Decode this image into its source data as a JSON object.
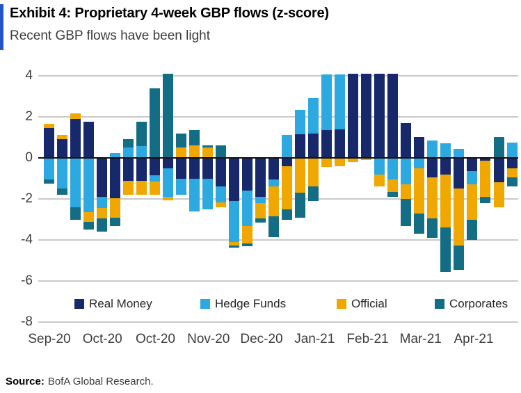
{
  "header": {
    "exhibit_title": "Exhibit 4: Proprietary 4-week GBP flows (z-score)",
    "subtitle": "Recent GBP flows have been light",
    "accent_color": "#2457C5"
  },
  "source": {
    "label": "Source:",
    "text": "BofA Global Research."
  },
  "chart_data": {
    "type": "bar",
    "stacked": true,
    "title": "Proprietary 4-week GBP flows (z-score)",
    "ylabel": "z-score",
    "ylim": [
      -8,
      4
    ],
    "yticks": [
      4,
      2,
      0,
      -2,
      -4,
      -6,
      -8
    ],
    "grid": true,
    "legend_position": "bottom-inside",
    "x_labels": [
      "Sep-20",
      "Oct-20",
      "Oct-20",
      "Nov-20",
      "Dec-20",
      "Jan-21",
      "Feb-21",
      "Mar-21",
      "Apr-21"
    ],
    "colors": {
      "real_money": "#17286B",
      "hedge_funds": "#2BA9E0",
      "official": "#F0A800",
      "corporates": "#136E85",
      "gridline": "#C9C9C9",
      "zero_axis": "#111111"
    },
    "series": [
      {
        "name": "Real Money",
        "color": "#17286B",
        "values": [
          1.45,
          0.9,
          1.9,
          1.75,
          -1.9,
          -1.95,
          -1.1,
          -1.1,
          -0.85,
          -0.5,
          -1.0,
          -1.0,
          -1.0,
          -1.4,
          -2.1,
          -1.6,
          -1.9,
          -1.05,
          -0.4,
          1.15,
          1.2,
          1.35,
          1.4,
          4.1,
          4.1,
          4.1,
          4.1,
          1.7,
          1.0,
          -0.95,
          -0.8,
          -1.5,
          -0.65,
          -0.15,
          -1.2,
          -0.5
        ]
      },
      {
        "name": "Hedge Funds",
        "color": "#2BA9E0",
        "values": [
          -1.05,
          -1.5,
          -2.4,
          -2.65,
          -0.55,
          0.25,
          0.5,
          0.57,
          -0.3,
          -1.4,
          -0.8,
          -1.6,
          -1.5,
          -0.75,
          -2.0,
          -1.7,
          -0.3,
          -0.35,
          1.1,
          1.2,
          1.7,
          2.7,
          2.65,
          0,
          0,
          -0.8,
          -1.05,
          -1.3,
          -0.5,
          0.85,
          0.7,
          0.45,
          -0.65,
          0,
          0,
          0.75
        ]
      },
      {
        "name": "Official",
        "color": "#F0A800",
        "values": [
          0.2,
          0.2,
          0.25,
          -0.45,
          -0.5,
          -0.95,
          -0.7,
          -0.7,
          -0.65,
          -0.15,
          0.5,
          0.6,
          0.5,
          -0.25,
          -0.15,
          -0.85,
          -0.75,
          -1.45,
          -2.1,
          -1.7,
          -1.4,
          -0.45,
          -0.4,
          -0.2,
          -0.1,
          -0.6,
          -0.6,
          -0.7,
          -2.2,
          -2.0,
          -2.6,
          -2.75,
          -1.7,
          -1.75,
          -1.2,
          -0.45
        ]
      },
      {
        "name": "Corporates",
        "color": "#136E85",
        "values": [
          -0.2,
          -0.3,
          -0.6,
          -0.4,
          -0.65,
          -0.4,
          0.4,
          1.2,
          3.4,
          4.1,
          0.7,
          0.75,
          0.1,
          0.6,
          -0.1,
          -0.15,
          -0.2,
          -1.0,
          -0.5,
          -1.2,
          -0.7,
          0,
          0,
          0,
          0,
          0,
          -0.25,
          -1.3,
          -1.0,
          -0.95,
          -2.15,
          -1.2,
          -1.0,
          -0.3,
          1.0,
          -0.45
        ]
      }
    ]
  }
}
